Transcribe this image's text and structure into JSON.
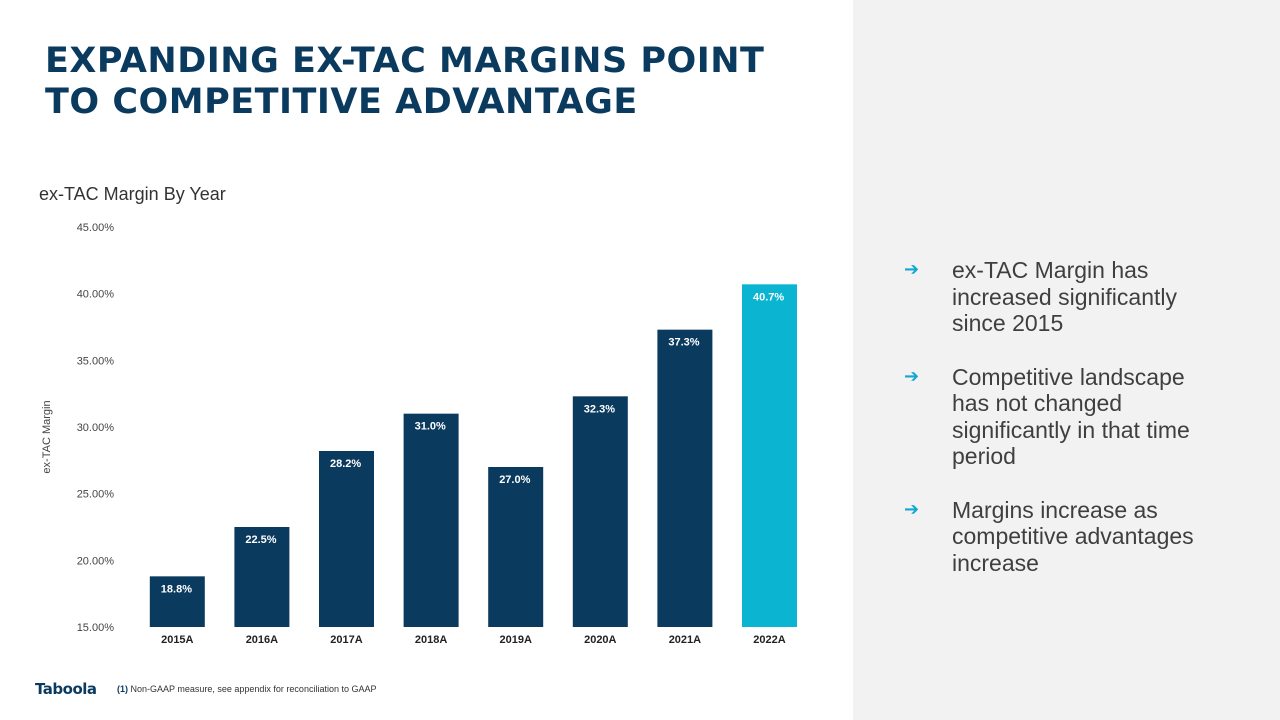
{
  "slide": {
    "title_line1": "EXPANDING EX-TAC MARGINS POINT",
    "title_line2": "TO COMPETITIVE ADVANTAGE",
    "bullets": [
      "ex-TAC Margin has increased significantly since 2015",
      "Competitive landscape has not changed significantly in that time period",
      "Margins increase as competitive advantages increase"
    ],
    "logo_text": "Taboola",
    "footnote_marker": "(1)",
    "footnote_text": "Non-GAAP measure, see appendix for reconciliation to GAAP"
  },
  "chart_data": {
    "type": "bar",
    "title": "ex-TAC Margin By Year",
    "xlabel": "",
    "ylabel": "ex-TAC Margin",
    "categories": [
      "2015A",
      "2016A",
      "2017A",
      "2018A",
      "2019A",
      "2020A",
      "2021A",
      "2022A"
    ],
    "values": [
      18.8,
      22.5,
      28.2,
      31.0,
      27.0,
      32.3,
      37.3,
      40.7
    ],
    "data_labels": [
      "18.8%",
      "22.5%",
      "28.2%",
      "31.0%",
      "27.0%",
      "32.3%",
      "37.3%",
      "40.7%"
    ],
    "ylim": [
      15,
      45
    ],
    "yticks": [
      15,
      20,
      25,
      30,
      35,
      40,
      45
    ],
    "ytick_labels": [
      "15.00%",
      "20.00%",
      "25.00%",
      "30.00%",
      "35.00%",
      "40.00%",
      "45.00%"
    ],
    "grid": false,
    "legend": "none",
    "colors": {
      "default": "#0b3a5f",
      "highlight": "#0bb4d0",
      "highlight_category": "2022A"
    }
  }
}
